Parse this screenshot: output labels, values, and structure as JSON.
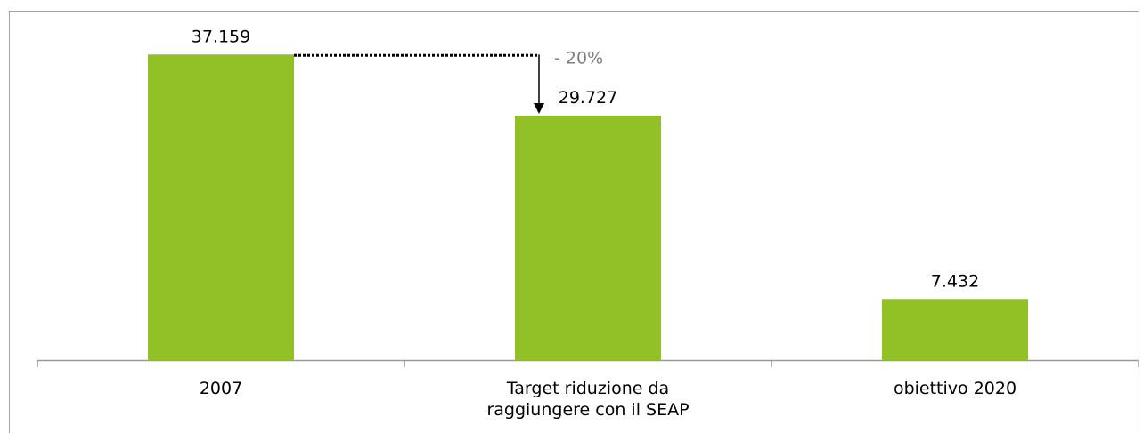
{
  "chart_data": {
    "type": "bar",
    "categories": [
      "2007",
      "Target riduzione da raggiungere con il SEAP",
      "obiettivo 2020"
    ],
    "values": [
      37159,
      29727,
      7432
    ],
    "value_labels": [
      "37.159",
      "29.727",
      "7.432"
    ],
    "color": "#92c027",
    "ylim": [
      0,
      40000
    ],
    "annotation": "- 20%"
  }
}
